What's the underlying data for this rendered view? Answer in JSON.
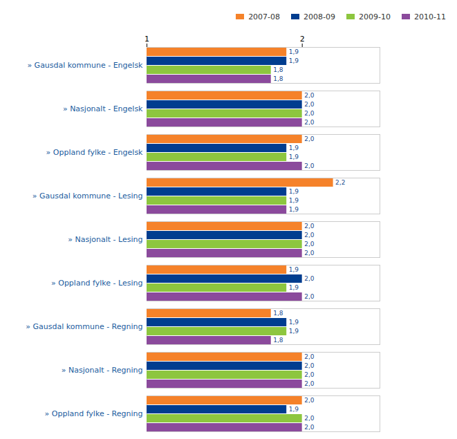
{
  "chart_data": {
    "type": "bar",
    "orientation": "horizontal",
    "data_labels": true,
    "grid": false,
    "legend": "top-right",
    "xlim": [
      1,
      2.5
    ],
    "xticks": [
      1,
      2
    ],
    "categories": [
      "» Gausdal kommune - Engelsk",
      "» Nasjonalt - Engelsk",
      "» Oppland fylke - Engelsk",
      "» Gausdal kommune - Lesing",
      "» Nasjonalt - Lesing",
      "» Oppland fylke - Lesing",
      "» Gausdal kommune - Regning",
      "» Nasjonalt - Regning",
      "» Oppland fylke - Regning"
    ],
    "series": [
      {
        "name": "2007-08",
        "color": "#f5822a",
        "values": [
          1.9,
          2.0,
          2.0,
          2.2,
          2.0,
          1.9,
          1.8,
          2.0,
          2.0
        ],
        "value_labels": [
          "1,9",
          "2,0",
          "2,0",
          "2,2",
          "2,0",
          "1,9",
          "1,8",
          "2,0",
          "2,0"
        ]
      },
      {
        "name": "2008-09",
        "color": "#003d8f",
        "values": [
          1.9,
          2.0,
          1.9,
          1.9,
          2.0,
          2.0,
          1.9,
          2.0,
          1.9
        ],
        "value_labels": [
          "1,9",
          "2,0",
          "1,9",
          "1,9",
          "2,0",
          "2,0",
          "1,9",
          "2,0",
          "1,9"
        ]
      },
      {
        "name": "2009-10",
        "color": "#8dc63f",
        "values": [
          1.8,
          2.0,
          1.9,
          1.9,
          2.0,
          1.9,
          1.9,
          2.0,
          2.0
        ],
        "value_labels": [
          "1,8",
          "2,0",
          "1,9",
          "1,9",
          "2,0",
          "1,9",
          "1,9",
          "2,0",
          "2,0"
        ]
      },
      {
        "name": "2010-11",
        "color": "#8b4a9c",
        "values": [
          1.8,
          2.0,
          2.0,
          1.9,
          2.0,
          2.0,
          1.8,
          2.0,
          2.0
        ],
        "value_labels": [
          "1,8",
          "2,0",
          "2,0",
          "1,9",
          "2,0",
          "2,0",
          "1,8",
          "2,0",
          "2,0"
        ]
      }
    ]
  }
}
